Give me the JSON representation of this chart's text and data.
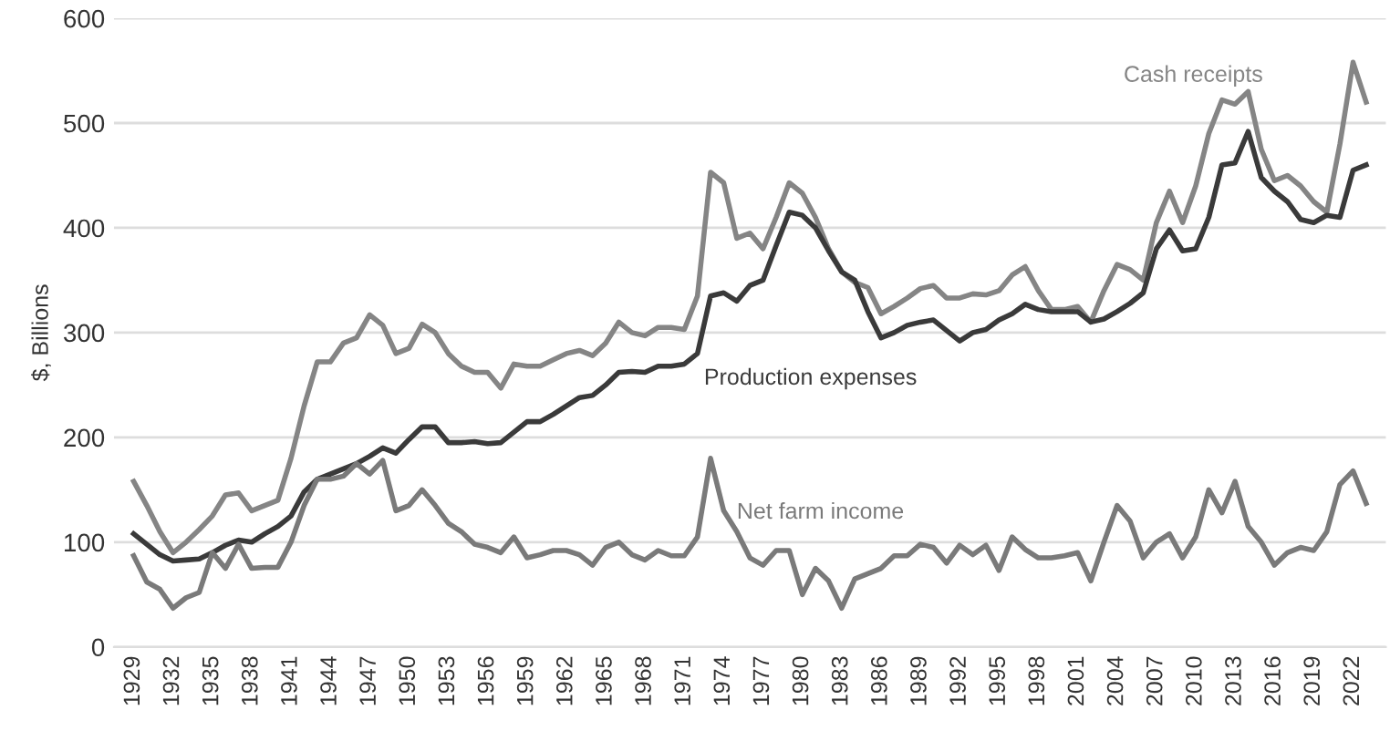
{
  "chart_data": {
    "type": "line",
    "ylabel": "$, Billions",
    "x": [
      1929,
      1930,
      1931,
      1932,
      1933,
      1934,
      1935,
      1936,
      1937,
      1938,
      1939,
      1940,
      1941,
      1942,
      1943,
      1944,
      1945,
      1946,
      1947,
      1948,
      1949,
      1950,
      1951,
      1952,
      1953,
      1954,
      1955,
      1956,
      1957,
      1958,
      1959,
      1960,
      1961,
      1962,
      1963,
      1964,
      1965,
      1966,
      1967,
      1968,
      1969,
      1970,
      1971,
      1972,
      1973,
      1974,
      1975,
      1976,
      1977,
      1978,
      1979,
      1980,
      1981,
      1982,
      1983,
      1984,
      1985,
      1986,
      1987,
      1988,
      1989,
      1990,
      1991,
      1992,
      1993,
      1994,
      1995,
      1996,
      1997,
      1998,
      1999,
      2000,
      2001,
      2002,
      2003,
      2004,
      2005,
      2006,
      2007,
      2008,
      2009,
      2010,
      2011,
      2012,
      2013,
      2014,
      2015,
      2016,
      2017,
      2018,
      2019,
      2020,
      2021,
      2022,
      2023
    ],
    "series": [
      {
        "name": "Cash receipts",
        "color": "#858585",
        "values": [
          158,
          135,
          110,
          90,
          100,
          112,
          125,
          145,
          147,
          130,
          135,
          140,
          180,
          230,
          272,
          272,
          290,
          295,
          317,
          307,
          280,
          285,
          308,
          300,
          280,
          268,
          262,
          262,
          247,
          270,
          268,
          268,
          274,
          280,
          283,
          278,
          290,
          310,
          300,
          297,
          305,
          305,
          303,
          335,
          453,
          443,
          390,
          395,
          380,
          410,
          443,
          433,
          410,
          380,
          358,
          348,
          343,
          318,
          325,
          333,
          342,
          345,
          333,
          333,
          337,
          336,
          340,
          355,
          363,
          340,
          322,
          322,
          325,
          310,
          340,
          365,
          360,
          350,
          405,
          435,
          405,
          440,
          490,
          522,
          518,
          530,
          475,
          445,
          450,
          440,
          425,
          415,
          480,
          558,
          520
        ]
      },
      {
        "name": "Production expenses",
        "color": "#3a3a3a",
        "values": [
          108,
          98,
          88,
          82,
          83,
          84,
          90,
          97,
          102,
          100,
          108,
          115,
          125,
          148,
          160,
          165,
          170,
          175,
          182,
          190,
          185,
          198,
          210,
          210,
          195,
          195,
          196,
          194,
          195,
          205,
          215,
          215,
          222,
          230,
          238,
          240,
          250,
          262,
          263,
          262,
          268,
          268,
          270,
          280,
          335,
          338,
          330,
          345,
          350,
          383,
          415,
          412,
          400,
          378,
          358,
          350,
          320,
          295,
          300,
          307,
          310,
          312,
          302,
          292,
          300,
          303,
          312,
          318,
          327,
          322,
          320,
          320,
          320,
          310,
          313,
          320,
          328,
          338,
          380,
          398,
          378,
          380,
          410,
          460,
          462,
          492,
          448,
          435,
          425,
          408,
          405,
          412,
          410,
          455,
          460
        ]
      },
      {
        "name": "Net farm income",
        "color": "#7a7a7a",
        "values": [
          87,
          62,
          55,
          37,
          47,
          52,
          90,
          75,
          98,
          75,
          76,
          76,
          100,
          135,
          160,
          160,
          163,
          175,
          165,
          178,
          130,
          135,
          150,
          135,
          118,
          110,
          98,
          95,
          90,
          105,
          85,
          88,
          92,
          92,
          88,
          78,
          95,
          100,
          88,
          83,
          92,
          87,
          87,
          105,
          180,
          130,
          110,
          85,
          78,
          92,
          92,
          50,
          75,
          63,
          37,
          65,
          70,
          75,
          87,
          87,
          98,
          95,
          80,
          97,
          88,
          97,
          73,
          105,
          93,
          85,
          85,
          87,
          90,
          63,
          100,
          135,
          120,
          85,
          100,
          108,
          85,
          105,
          150,
          128,
          158,
          115,
          100,
          78,
          90,
          95,
          92,
          110,
          155,
          168,
          137
        ]
      }
    ],
    "xlim": [
      1927.5,
      2024.5
    ],
    "xticks": [
      1929,
      1932,
      1935,
      1938,
      1941,
      1944,
      1947,
      1950,
      1953,
      1956,
      1959,
      1962,
      1965,
      1968,
      1971,
      1974,
      1977,
      1980,
      1983,
      1986,
      1989,
      1992,
      1995,
      1998,
      2001,
      2004,
      2007,
      2010,
      2013,
      2016,
      2019,
      2022
    ],
    "ylim": [
      0,
      600
    ],
    "yticks": [
      0,
      100,
      200,
      300,
      400,
      500,
      600
    ],
    "grid": "y",
    "legend": false,
    "marker": "none",
    "line_style": "solid"
  }
}
